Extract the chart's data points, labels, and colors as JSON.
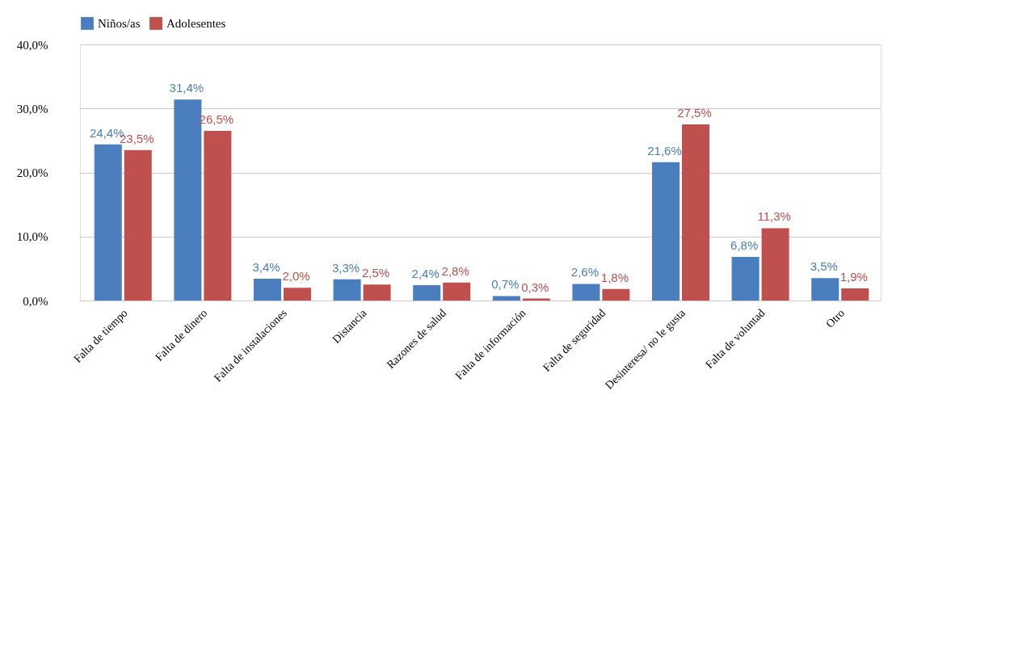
{
  "chart_data": {
    "type": "bar",
    "categories": [
      "Falta de tiempo",
      "Falta de dinero",
      "Falta de instalaciones",
      "Distancia",
      "Razones de salud",
      "Falta de información",
      "Falta de seguridad",
      "Desinteresa/ no le gusta",
      "Falta de voluntad",
      "Otro"
    ],
    "series": [
      {
        "name": "Niños/as",
        "color": "#4a7ebf",
        "values": [
          24.4,
          31.4,
          3.4,
          3.3,
          2.4,
          0.7,
          2.6,
          21.6,
          6.8,
          3.5
        ],
        "value_labels": [
          "24,4%",
          "31,4%",
          "3,4%",
          "3,3%",
          "2,4%",
          "0,7%",
          "2,6%",
          "21,6%",
          "6,8%",
          "3,5%"
        ]
      },
      {
        "name": "Adolesentes",
        "color": "#c0504d",
        "values": [
          23.5,
          26.5,
          2.0,
          2.5,
          2.8,
          0.3,
          1.8,
          27.5,
          11.3,
          1.9
        ],
        "value_labels": [
          "23,5%",
          "26,5%",
          "2,0%",
          "2,5%",
          "2,8%",
          "0,3%",
          "1,8%",
          "27,5%",
          "11,3%",
          "1,9%"
        ]
      }
    ],
    "ylim": [
      0,
      40
    ],
    "yticks": [
      {
        "value": 0,
        "label": "0,0%"
      },
      {
        "value": 10,
        "label": "10,0%"
      },
      {
        "value": 20,
        "label": "20,0%"
      },
      {
        "value": 30,
        "label": "30,0%"
      },
      {
        "value": 40,
        "label": "40,0%"
      }
    ],
    "grid": "y",
    "legend": "top"
  }
}
